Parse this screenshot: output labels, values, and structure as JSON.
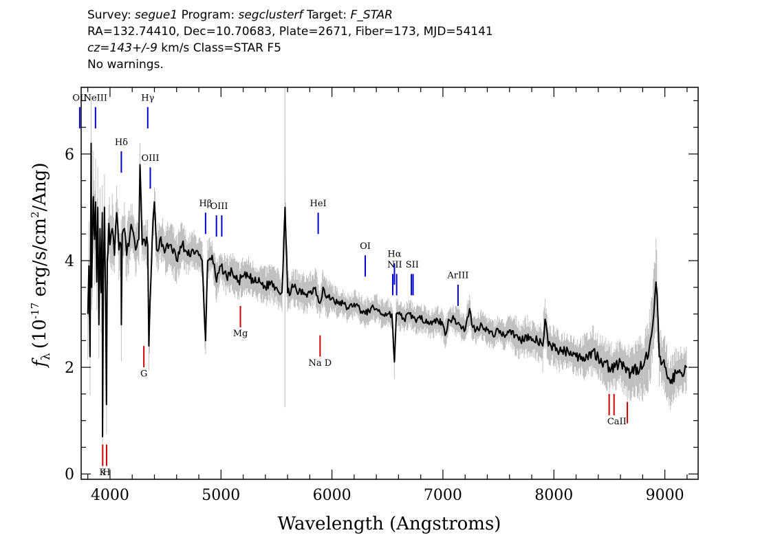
{
  "header": {
    "survey_label": "Survey:",
    "survey": "segue1",
    "program_label": "Program:",
    "program": "segclusterf",
    "target_label": "Target:",
    "target": "F_STAR",
    "line2": "RA=132.74410, Dec=10.70683, Plate=2671, Fiber=173, MJD=54141",
    "cz_prefix": "cz=",
    "cz_value": "143+/-9",
    "cz_suffix": " km/s Class=STAR F5",
    "line4": "No warnings."
  },
  "colors": {
    "flux": "#000000",
    "error": "#c0c0c0",
    "emission": "#0000cc",
    "absorption": "#cc0000",
    "sky": "#000000"
  },
  "chart_data": {
    "type": "line",
    "xlabel": "Wavelength (Angstroms)",
    "ylabel": "f_λ (10^-17 erg/s/cm^2/Ang)",
    "ylabel_parts": {
      "f": "f",
      "lambda": "λ",
      "pre": "(10",
      "exp1": "-17",
      "mid": " erg/s/cm",
      "exp2": "2",
      "post": "/Ang)"
    },
    "xlim": [
      3740,
      9300
    ],
    "ylim": [
      -0.1,
      7.25
    ],
    "x_ticks": [
      4000,
      5000,
      6000,
      7000,
      8000,
      9000
    ],
    "x_tick_labels": [
      "4000",
      "5000",
      "6000",
      "7000",
      "8000",
      "9000"
    ],
    "y_ticks": [
      0,
      2,
      4,
      6
    ],
    "y_tick_labels": [
      "0",
      "2",
      "4",
      "6"
    ],
    "x_minor_step": 200,
    "y_minor_step": 0.5,
    "grid": false,
    "series": [
      {
        "role": "flux",
        "x": [
          3800,
          3810,
          3820,
          3830,
          3835,
          3840,
          3850,
          3860,
          3870,
          3880,
          3890,
          3900,
          3910,
          3920,
          3930,
          3933,
          3940,
          3950,
          3960,
          3968,
          3975,
          3990,
          4000,
          4020,
          4040,
          4060,
          4080,
          4100,
          4102,
          4110,
          4130,
          4150,
          4180,
          4200,
          4230,
          4260,
          4270,
          4290,
          4310,
          4340,
          4350,
          4380,
          4400,
          4420,
          4450,
          4500,
          4550,
          4600,
          4650,
          4700,
          4750,
          4800,
          4830,
          4861,
          4880,
          4920,
          4960,
          5000,
          5050,
          5100,
          5150,
          5200,
          5250,
          5300,
          5350,
          5400,
          5450,
          5500,
          5550,
          5577,
          5600,
          5650,
          5700,
          5750,
          5800,
          5850,
          5890,
          5920,
          5950,
          6000,
          6050,
          6100,
          6150,
          6200,
          6250,
          6300,
          6350,
          6400,
          6450,
          6500,
          6540,
          6563,
          6580,
          6600,
          6650,
          6700,
          6750,
          6800,
          6850,
          6900,
          6950,
          7000,
          7020,
          7050,
          7100,
          7150,
          7200,
          7240,
          7260,
          7300,
          7350,
          7400,
          7450,
          7500,
          7550,
          7600,
          7650,
          7700,
          7750,
          7800,
          7850,
          7900,
          7920,
          7950,
          8000,
          8050,
          8100,
          8150,
          8200,
          8250,
          8300,
          8350,
          8400,
          8450,
          8500,
          8550,
          8600,
          8650,
          8700,
          8750,
          8800,
          8850,
          8880,
          8900,
          8920,
          8950,
          9000,
          9050,
          9100,
          9150,
          9200
        ],
        "y": [
          3.0,
          3.9,
          2.2,
          6.2,
          3.5,
          4.2,
          5.2,
          4.4,
          5.1,
          3.6,
          5.0,
          2.8,
          4.6,
          3.4,
          4.9,
          0.7,
          3.6,
          5.0,
          3.2,
          1.3,
          4.0,
          4.7,
          4.3,
          4.6,
          4.1,
          4.9,
          4.2,
          4.3,
          2.8,
          4.5,
          4.6,
          4.1,
          4.5,
          4.6,
          4.2,
          4.4,
          5.8,
          4.3,
          4.4,
          4.3,
          2.4,
          4.4,
          5.1,
          4.2,
          4.4,
          4.2,
          4.3,
          4.0,
          4.3,
          4.1,
          4.2,
          4.1,
          4.0,
          2.5,
          4.0,
          4.1,
          3.6,
          3.9,
          3.7,
          3.8,
          3.6,
          3.7,
          3.7,
          3.6,
          3.6,
          3.5,
          3.6,
          3.5,
          3.4,
          5.0,
          3.4,
          3.5,
          3.4,
          3.4,
          3.4,
          3.5,
          3.2,
          3.5,
          3.3,
          3.3,
          3.2,
          3.2,
          3.1,
          3.2,
          3.1,
          3.0,
          3.1,
          3.1,
          3.0,
          3.0,
          3.0,
          2.1,
          3.0,
          3.0,
          2.9,
          3.0,
          2.9,
          2.9,
          2.9,
          2.8,
          2.9,
          2.8,
          2.6,
          2.9,
          2.9,
          2.8,
          2.7,
          3.1,
          2.8,
          2.7,
          2.8,
          2.7,
          2.6,
          2.7,
          2.6,
          2.7,
          2.6,
          2.5,
          2.6,
          2.5,
          2.5,
          2.4,
          2.9,
          2.4,
          2.4,
          2.3,
          2.3,
          2.3,
          2.2,
          2.2,
          2.2,
          2.3,
          2.2,
          2.1,
          2.0,
          2.0,
          2.1,
          1.9,
          1.9,
          2.0,
          2.0,
          2.2,
          2.6,
          3.0,
          3.6,
          2.2,
          2.0,
          1.7,
          1.9,
          1.9,
          2.0
        ]
      }
    ],
    "error_band_width": [
      0.9,
      1.0,
      1.0,
      1.0,
      1.0,
      1.0,
      0.9,
      0.9,
      0.9,
      0.9,
      0.9,
      0.9,
      0.8,
      0.8,
      0.8,
      0.9,
      0.8,
      0.8,
      0.8,
      0.9,
      0.8,
      0.7,
      0.7,
      0.7,
      0.6,
      0.6,
      0.6,
      0.6,
      0.7,
      0.6,
      0.6,
      0.6,
      0.6,
      0.5,
      0.5,
      0.5,
      0.6,
      0.5,
      0.5,
      0.5,
      0.6,
      0.5,
      0.5,
      0.5,
      0.5,
      0.5,
      0.5,
      0.5,
      0.5,
      0.4,
      0.4,
      0.4,
      0.4,
      0.5,
      0.4,
      0.4,
      0.4,
      0.4,
      0.4,
      0.4,
      0.4,
      0.4,
      0.4,
      0.4,
      0.4,
      0.4,
      0.4,
      0.4,
      0.4,
      0.8,
      0.4,
      0.4,
      0.4,
      0.4,
      0.4,
      0.4,
      0.4,
      0.4,
      0.4,
      0.3,
      0.3,
      0.3,
      0.3,
      0.3,
      0.3,
      0.3,
      0.3,
      0.3,
      0.3,
      0.3,
      0.3,
      0.4,
      0.3,
      0.3,
      0.3,
      0.3,
      0.3,
      0.3,
      0.3,
      0.3,
      0.3,
      0.3,
      0.3,
      0.3,
      0.3,
      0.3,
      0.3,
      0.4,
      0.3,
      0.3,
      0.3,
      0.3,
      0.3,
      0.3,
      0.3,
      0.3,
      0.4,
      0.4,
      0.4,
      0.4,
      0.4,
      0.5,
      0.5,
      0.4,
      0.4,
      0.4,
      0.4,
      0.4,
      0.4,
      0.4,
      0.5,
      0.5,
      0.5,
      0.5,
      0.5,
      0.5,
      0.5,
      0.5,
      0.6,
      0.6,
      0.7,
      0.7,
      0.8,
      0.9,
      1.0,
      0.6,
      0.6,
      0.5,
      0.5,
      0.5,
      0.5
    ],
    "sky_line": {
      "x": 5577,
      "y_range": [
        1.25,
        7.25
      ]
    },
    "lines": [
      {
        "label": "OII",
        "x": 3727,
        "y_top": 6.88,
        "y_bottom": 6.48,
        "label_y": 7.0,
        "kind": "emission"
      },
      {
        "label": "NeIII",
        "x": 3869,
        "y_top": 6.88,
        "y_bottom": 6.48,
        "label_y": 7.0,
        "kind": "emission"
      },
      {
        "label": "Hγ",
        "x": 4340,
        "y_top": 6.88,
        "y_bottom": 6.48,
        "label_y": 7.0,
        "kind": "emission"
      },
      {
        "label": "Hδ",
        "x": 4102,
        "y_top": 6.05,
        "y_bottom": 5.65,
        "label_y": 6.17,
        "kind": "emission"
      },
      {
        "label": "OIII",
        "x": 4363,
        "y_top": 5.75,
        "y_bottom": 5.35,
        "label_y": 5.87,
        "kind": "emission"
      },
      {
        "label": "Hβ",
        "x": 4861,
        "y_top": 4.9,
        "y_bottom": 4.5,
        "label_y": 5.02,
        "kind": "emission"
      },
      {
        "label": "OIII",
        "x": 4959,
        "y_top": 4.85,
        "y_bottom": 4.45,
        "label_y": 4.97,
        "kind": "emission"
      },
      {
        "label": "OIII",
        "x": 5007,
        "y_top": 4.85,
        "y_bottom": 4.45,
        "label_y": 4.97,
        "kind": "emission"
      },
      {
        "label": "HeI",
        "x": 5876,
        "y_top": 4.9,
        "y_bottom": 4.5,
        "label_y": 5.02,
        "kind": "emission"
      },
      {
        "label": "OI",
        "x": 6300,
        "y_top": 4.1,
        "y_bottom": 3.7,
        "label_y": 4.22,
        "kind": "emission"
      },
      {
        "label": "NII",
        "x": 6548,
        "y_top": 3.75,
        "y_bottom": 3.35,
        "label_y": 3.87,
        "kind": "emission"
      },
      {
        "label": "Hα",
        "x": 6563,
        "y_top": 3.95,
        "y_bottom": 3.55,
        "label_y": 4.07,
        "kind": "emission"
      },
      {
        "label": "NII",
        "x": 6583,
        "y_top": 3.75,
        "y_bottom": 3.35,
        "label_y": 3.87,
        "kind": "emission"
      },
      {
        "label": "SII",
        "x": 6716,
        "y_top": 3.75,
        "y_bottom": 3.35,
        "label_y": 3.87,
        "kind": "emission"
      },
      {
        "label": "SII",
        "x": 6731,
        "y_top": 3.75,
        "y_bottom": 3.35,
        "label_y": 3.87,
        "kind": "emission"
      },
      {
        "label": "ArIII",
        "x": 7136,
        "y_top": 3.55,
        "y_bottom": 3.15,
        "label_y": 3.67,
        "kind": "emission"
      },
      {
        "label": "Mg",
        "x": 5175,
        "y_top": 3.15,
        "y_bottom": 2.75,
        "label_y": 2.58,
        "kind": "absorption"
      },
      {
        "label": "G",
        "x": 4305,
        "y_top": 2.4,
        "y_bottom": 2.0,
        "label_y": 1.83,
        "kind": "absorption"
      },
      {
        "label": "Na D",
        "x": 5893,
        "y_top": 2.6,
        "y_bottom": 2.2,
        "label_y": 2.03,
        "kind": "absorption"
      },
      {
        "label": "K",
        "x": 3934,
        "y_top": 0.55,
        "y_bottom": 0.15,
        "label_y": -0.02,
        "kind": "absorption"
      },
      {
        "label": "H",
        "x": 3969,
        "y_top": 0.55,
        "y_bottom": 0.15,
        "label_y": -0.02,
        "kind": "absorption"
      },
      {
        "label": "CaII",
        "x": 8498,
        "y_top": 1.5,
        "y_bottom": 1.1,
        "label_y": 0.93,
        "kind": "absorption"
      },
      {
        "label": "CaII",
        "x": 8542,
        "y_top": 1.5,
        "y_bottom": 1.1,
        "label_y": 0.93,
        "kind": "absorption"
      },
      {
        "label": "CaII",
        "x": 8662,
        "y_top": 1.35,
        "y_bottom": 0.95,
        "label_y": 0.93,
        "kind": "absorption"
      }
    ]
  }
}
